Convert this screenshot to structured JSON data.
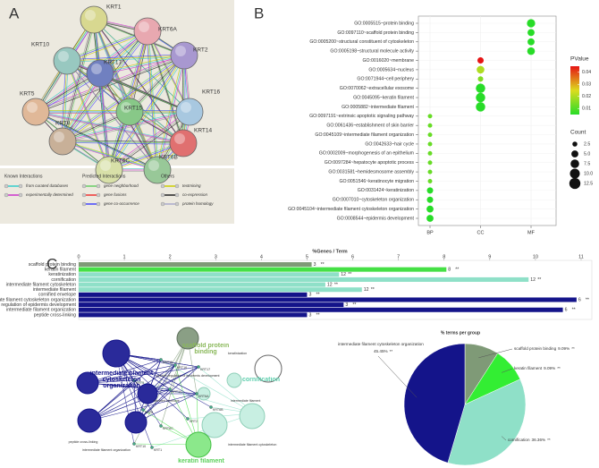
{
  "panel_labels": [
    "A",
    "B",
    "C"
  ],
  "string_network": {
    "nodes": [
      "KRT1",
      "KRT6A",
      "KRT2",
      "KRT10",
      "KRT17",
      "KRT16",
      "KRT5",
      "KRT15",
      "KRT14",
      "KRT8",
      "KRT6C",
      "KRT6B"
    ],
    "legend": [
      {
        "title": "Known Interactions",
        "items": [
          "from curated databases",
          "experimentally determined"
        ]
      },
      {
        "title": "Predicted Interactions",
        "items": [
          "gene neighborhood",
          "gene fusions",
          "gene co-occurrence"
        ]
      },
      {
        "title": "Others",
        "items": [
          "textmining",
          "co-expression",
          "protein homology"
        ]
      }
    ]
  },
  "chart_data": [
    {
      "type": "dot",
      "x_categories": [
        "BP",
        "CC",
        "MF"
      ],
      "terms": [
        "GO:0005515~protein binding",
        "GO:0097110~scaffold protein binding",
        "GO:0005200~structural constituent of cytoskeleton",
        "GO:0005198~structural molecule activity",
        "GO:0016020~membrane",
        "GO:0005634~nucleus",
        "GO:0071944~cell periphery",
        "GO:0070062~extracellular exosome",
        "GO:0045095~keratin filament",
        "GO:0005882~intermediate filament",
        "GO:0097191~extrinsic apoptotic signaling pathway",
        "GO:0061436~establishment of skin barrier",
        "GO:0045109~intermediate filament organization",
        "GO:0042633~hair cycle",
        "GO:0002009~morphogenesis of an epithelium",
        "GO:0097284~hepatocyte apoptotic process",
        "GO:0031581~hemidesmosome assembly",
        "GO:0051546~keratinocyte migration",
        "GO:0031424~keratinization",
        "GO:0007010~cytoskeleton organization",
        "GO:0045104~intermediate filament cytoskeleton organization",
        "GO:0008544~epidermis development"
      ],
      "x": [
        "MF",
        "MF",
        "MF",
        "MF",
        "CC",
        "CC",
        "CC",
        "CC",
        "CC",
        "CC",
        "BP",
        "BP",
        "BP",
        "BP",
        "BP",
        "BP",
        "BP",
        "BP",
        "BP",
        "BP",
        "BP",
        "BP"
      ],
      "counts": [
        7,
        5,
        5,
        6,
        4,
        6,
        3,
        9,
        9,
        9,
        2,
        2,
        2,
        2,
        2,
        2,
        2,
        2,
        4,
        4,
        5,
        5
      ],
      "pvalues": [
        0.005,
        0.005,
        0.005,
        0.005,
        0.045,
        0.02,
        0.015,
        0.005,
        0.005,
        0.005,
        0.012,
        0.012,
        0.012,
        0.012,
        0.012,
        0.012,
        0.012,
        0.012,
        0.005,
        0.005,
        0.005,
        0.005
      ],
      "color_legend_title": "PValue",
      "color_lim": [
        0.005,
        0.045
      ],
      "color_ticks": [
        0.04,
        0.03,
        0.02,
        0.01
      ],
      "size_legend_title": "Count",
      "size_ticks": [
        2.5,
        {
          "value": 5,
          "label": "5.0"
        },
        7.5,
        {
          "value": 10,
          "label": "10.0"
        },
        12.5
      ]
    },
    {
      "type": "hbar",
      "title": "%Genes / Term",
      "categories": [
        "scaffold protein binding",
        "keratin filament",
        "keratinization",
        "cornification",
        "intermediate filament cytoskeleton",
        "intermediate filament",
        "cornified envelope",
        "intermediate filament cytoskeleton organization",
        "positive regulation of epidermis development",
        "intermediate filament organization",
        "peptide cross-linking"
      ],
      "values": [
        5.1,
        8.05,
        5.7,
        9.85,
        5.4,
        6.2,
        5.0,
        10.9,
        5.8,
        10.6,
        5.0
      ],
      "gene_counts": [
        3,
        8,
        12,
        12,
        12,
        12,
        3,
        6,
        3,
        6,
        3
      ],
      "significance": [
        "**",
        "**",
        "**",
        "**",
        "**",
        "**",
        "**",
        "**",
        "**",
        "**",
        "**"
      ],
      "colors": [
        "#7f9a77",
        "#45e045",
        "#8fe0c8",
        "#8fe0c8",
        "#8fe0c8",
        "#8fe0c8",
        "#14148a",
        "#14148a",
        "#14148a",
        "#14148a",
        "#14148a"
      ],
      "xlim": [
        0,
        11
      ],
      "xticks": [
        0,
        1,
        2,
        3,
        4,
        5,
        6,
        7,
        8,
        9,
        10,
        11
      ]
    },
    {
      "type": "pie",
      "title": "% terms per group",
      "categories": [
        "scaffold protein binding",
        "keratin filament",
        "cornification",
        "intermediate filament cytoskeleton organization"
      ],
      "values": [
        9.09,
        9.09,
        36.36,
        45.45
      ],
      "value_labels": [
        "9.09%",
        "9.09%",
        "36.36%",
        "45.45%"
      ],
      "significance": [
        "**",
        "**",
        "**",
        "**"
      ],
      "colors": [
        "#7f9a77",
        "#33ee33",
        "#8fe0c8",
        "#14148a"
      ]
    }
  ],
  "go_network": {
    "group_labels": [
      "intermediate filament cytoskeleton organization",
      "scaffold protein binding",
      "cornification",
      "keratin filament"
    ],
    "genes": [
      "KRT15",
      "KRT16",
      "KRT17",
      "KRT14",
      "KRT5",
      "KRT6A",
      "KRT6B",
      "KRT6C",
      "KRT1",
      "KRT10",
      "KRT2",
      "KRT8"
    ],
    "terms": [
      "peptide cross-linking",
      "intermediate filament organization",
      "keratinization",
      "cornified envelope",
      "intermediate filament",
      "intermediate filament cytoskeleton",
      "positive regulation of epidermis development"
    ]
  }
}
